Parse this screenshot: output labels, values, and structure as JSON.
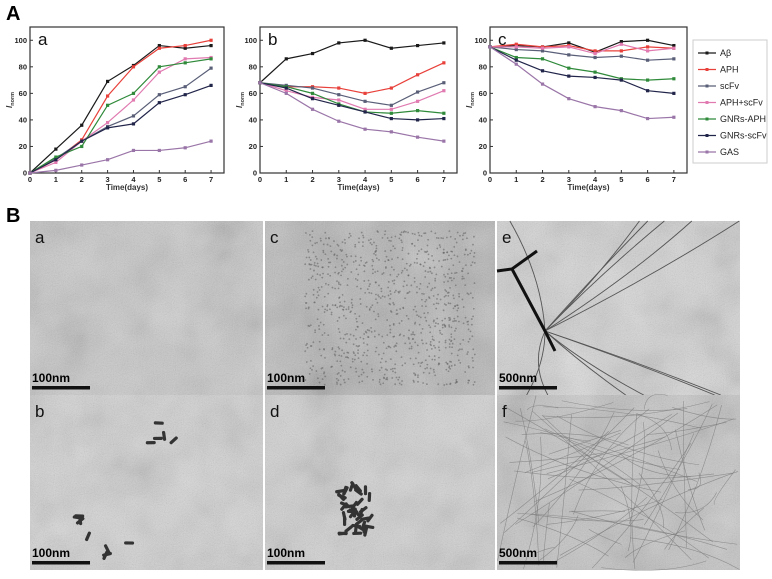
{
  "figure": {
    "panel_A_label": "A",
    "panel_B_label": "B"
  },
  "chart_data": [
    {
      "type": "line",
      "panel": "a",
      "xlabel": "Time(days)",
      "ylabel": "I",
      "ylabel_subscript": "norm",
      "x": [
        0,
        1,
        2,
        3,
        4,
        5,
        6,
        7
      ],
      "xlim": [
        0,
        7.5
      ],
      "ylim": [
        0,
        110
      ],
      "xticks": [
        "0",
        "1",
        "2",
        "3",
        "4",
        "5",
        "6",
        "7"
      ],
      "yticks": [
        "0",
        "20",
        "40",
        "60",
        "80",
        "100"
      ],
      "series": [
        {
          "name": "Aβ",
          "color": "#1a1a1a",
          "values": [
            0,
            18,
            36,
            69,
            81,
            96,
            94,
            96
          ]
        },
        {
          "name": "APH",
          "color": "#e8403a",
          "values": [
            0,
            10,
            25,
            58,
            80,
            94,
            96,
            100
          ]
        },
        {
          "name": "scFv",
          "color": "#5a5f78",
          "values": [
            0,
            11,
            24,
            35,
            43,
            59,
            65,
            79
          ]
        },
        {
          "name": "APH+scFv",
          "color": "#e07ab0",
          "values": [
            0,
            8,
            24,
            38,
            55,
            76,
            86,
            87
          ]
        },
        {
          "name": "GNRs-APH",
          "color": "#2f8a3a",
          "values": [
            0,
            12,
            20,
            51,
            60,
            80,
            83,
            86
          ]
        },
        {
          "name": "GNRs-scFv",
          "color": "#22254a",
          "values": [
            0,
            10,
            24,
            34,
            37,
            53,
            59,
            66
          ]
        },
        {
          "name": "GAS",
          "color": "#9a75a8",
          "values": [
            0,
            2,
            6,
            10,
            17,
            17,
            19,
            24
          ]
        }
      ]
    },
    {
      "type": "line",
      "panel": "b",
      "xlabel": "Time(days)",
      "ylabel": "I",
      "ylabel_subscript": "norm",
      "x": [
        0,
        1,
        2,
        3,
        4,
        5,
        6,
        7
      ],
      "xlim": [
        0,
        7.5
      ],
      "ylim": [
        0,
        110
      ],
      "xticks": [
        "0",
        "1",
        "2",
        "3",
        "4",
        "5",
        "6",
        "7"
      ],
      "yticks": [
        "0",
        "20",
        "40",
        "60",
        "80",
        "100"
      ],
      "series": [
        {
          "name": "Aβ",
          "color": "#1a1a1a",
          "values": [
            68,
            86,
            90,
            98,
            100,
            94,
            96,
            98
          ]
        },
        {
          "name": "APH",
          "color": "#e8403a",
          "values": [
            68,
            65,
            65,
            64,
            60,
            64,
            74,
            83
          ]
        },
        {
          "name": "scFv",
          "color": "#5a5f78",
          "values": [
            68,
            66,
            64,
            59,
            54,
            51,
            61,
            68
          ]
        },
        {
          "name": "APH+scFv",
          "color": "#e07ab0",
          "values": [
            68,
            62,
            57,
            55,
            48,
            48,
            54,
            62
          ]
        },
        {
          "name": "GNRs-APH",
          "color": "#2f8a3a",
          "values": [
            68,
            65,
            60,
            52,
            46,
            45,
            47,
            45
          ]
        },
        {
          "name": "GNRs-scFv",
          "color": "#22254a",
          "values": [
            68,
            64,
            56,
            51,
            46,
            41,
            40,
            41
          ]
        },
        {
          "name": "GAS",
          "color": "#9a75a8",
          "values": [
            68,
            60,
            48,
            39,
            33,
            31,
            27,
            24
          ]
        }
      ]
    },
    {
      "type": "line",
      "panel": "c",
      "xlabel": "Time(days)",
      "ylabel": "I",
      "ylabel_subscript": "norm",
      "x": [
        0,
        1,
        2,
        3,
        4,
        5,
        6,
        7
      ],
      "xlim": [
        0,
        7.5
      ],
      "ylim": [
        0,
        110
      ],
      "xticks": [
        "0",
        "1",
        "2",
        "3",
        "4",
        "5",
        "6",
        "7"
      ],
      "yticks": [
        "0",
        "20",
        "40",
        "60",
        "80",
        "100"
      ],
      "legend": "right-outside",
      "series": [
        {
          "name": "Aβ",
          "color": "#1a1a1a",
          "values": [
            95,
            96,
            95,
            98,
            91,
            99,
            100,
            96
          ]
        },
        {
          "name": "APH",
          "color": "#e8403a",
          "values": [
            95,
            97,
            95,
            96,
            92,
            92,
            95,
            94
          ]
        },
        {
          "name": "scFv",
          "color": "#5a5f78",
          "values": [
            95,
            93,
            92,
            89,
            87,
            88,
            85,
            86
          ]
        },
        {
          "name": "APH+scFv",
          "color": "#e07ab0",
          "values": [
            95,
            95,
            94,
            95,
            90,
            97,
            92,
            94
          ]
        },
        {
          "name": "GNRs-APH",
          "color": "#2f8a3a",
          "values": [
            95,
            87,
            86,
            79,
            76,
            71,
            70,
            71
          ]
        },
        {
          "name": "GNRs-scFv",
          "color": "#22254a",
          "values": [
            95,
            85,
            77,
            73,
            72,
            70,
            62,
            60
          ]
        },
        {
          "name": "GAS",
          "color": "#9a75a8",
          "values": [
            95,
            82,
            67,
            56,
            50,
            47,
            41,
            42
          ]
        }
      ]
    }
  ],
  "tem_images": [
    {
      "letter": "a",
      "scale": "100nm"
    },
    {
      "letter": "b",
      "scale": "100nm"
    },
    {
      "letter": "c",
      "scale": "100nm"
    },
    {
      "letter": "d",
      "scale": "100nm"
    },
    {
      "letter": "e",
      "scale": "500nm"
    },
    {
      "letter": "f",
      "scale": "500nm"
    }
  ]
}
